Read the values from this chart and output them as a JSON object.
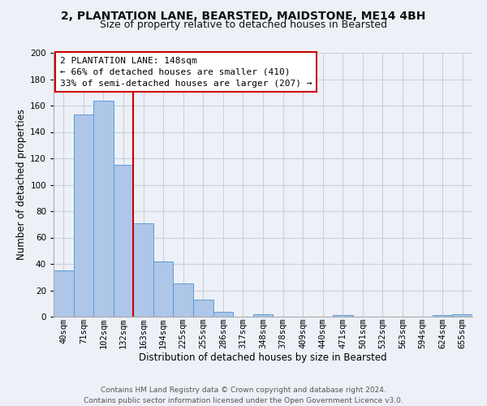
{
  "title_line1": "2, PLANTATION LANE, BEARSTED, MAIDSTONE, ME14 4BH",
  "title_line2": "Size of property relative to detached houses in Bearsted",
  "xlabel": "Distribution of detached houses by size in Bearsted",
  "ylabel": "Number of detached properties",
  "categories": [
    "40sqm",
    "71sqm",
    "102sqm",
    "132sqm",
    "163sqm",
    "194sqm",
    "225sqm",
    "255sqm",
    "286sqm",
    "317sqm",
    "348sqm",
    "378sqm",
    "409sqm",
    "440sqm",
    "471sqm",
    "501sqm",
    "532sqm",
    "563sqm",
    "594sqm",
    "624sqm",
    "655sqm"
  ],
  "values": [
    35,
    153,
    164,
    115,
    71,
    42,
    25,
    13,
    4,
    0,
    2,
    0,
    0,
    0,
    1,
    0,
    0,
    0,
    0,
    1,
    2
  ],
  "bar_color": "#aec6e8",
  "bar_edge_color": "#5b9bd5",
  "annotation_line1": "2 PLANTATION LANE: 148sqm",
  "annotation_line2": "← 66% of detached houses are smaller (410)",
  "annotation_line3": "33% of semi-detached houses are larger (207) →",
  "annotation_box_color": "#ffffff",
  "annotation_box_edge_color": "#cc0000",
  "vline_x": 3.5,
  "vline_color": "#cc0000",
  "ylim": [
    0,
    200
  ],
  "yticks": [
    0,
    20,
    40,
    60,
    80,
    100,
    120,
    140,
    160,
    180,
    200
  ],
  "grid_color": "#c8d0dc",
  "background_color": "#edf1f7",
  "footer_text": "Contains HM Land Registry data © Crown copyright and database right 2024.\nContains public sector information licensed under the Open Government Licence v3.0.",
  "title_fontsize": 10,
  "subtitle_fontsize": 9,
  "axis_label_fontsize": 8.5,
  "tick_fontsize": 7.5,
  "annotation_fontsize": 8,
  "footer_fontsize": 6.5
}
